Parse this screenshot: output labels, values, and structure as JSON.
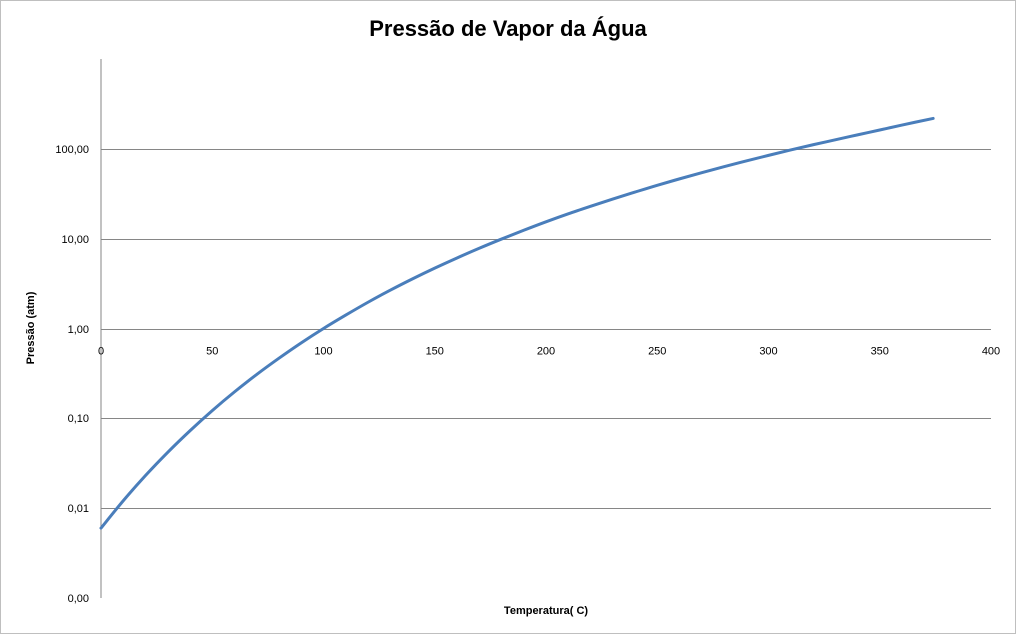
{
  "chart_data": {
    "type": "line",
    "title": "Pressão de Vapor da Água",
    "xlabel": "Temperatura( C)",
    "ylabel": "Pressão (atm)",
    "xlim": [
      0,
      400
    ],
    "ylim": [
      0.001,
      1000
    ],
    "yscale": "log",
    "x_ticks": [
      0,
      50,
      100,
      150,
      200,
      250,
      300,
      350,
      400
    ],
    "x_tick_labels": [
      "0",
      "50",
      "100",
      "150",
      "200",
      "250",
      "300",
      "350",
      "400"
    ],
    "y_ticks": [
      0.001,
      0.01,
      0.1,
      1,
      10,
      100
    ],
    "y_tick_labels": [
      "0,00",
      "0,01",
      "0,10",
      "1,00",
      "10,00",
      "100,00"
    ],
    "grid": "horizontal",
    "legend": "none",
    "line_color": "#4a7ebb",
    "series": [
      {
        "x": [
          0,
          10,
          20,
          30,
          40,
          50,
          60,
          70,
          80,
          90,
          100,
          110,
          120,
          130,
          140,
          150,
          160,
          170,
          180,
          190,
          200,
          210,
          220,
          230,
          240,
          250,
          260,
          270,
          280,
          290,
          300,
          310,
          320,
          330,
          340,
          350,
          360,
          374
        ],
        "y": [
          0.006,
          0.0121,
          0.0231,
          0.0419,
          0.0728,
          0.122,
          0.197,
          0.308,
          0.467,
          0.692,
          1.0,
          1.41,
          1.96,
          2.67,
          3.57,
          4.7,
          6.1,
          7.82,
          9.9,
          12.4,
          15.4,
          18.9,
          22.9,
          27.6,
          33.0,
          39.3,
          46.3,
          54.3,
          63.3,
          73.3,
          84.6,
          97.2,
          111,
          126,
          143,
          162,
          184,
          218
        ]
      }
    ]
  }
}
